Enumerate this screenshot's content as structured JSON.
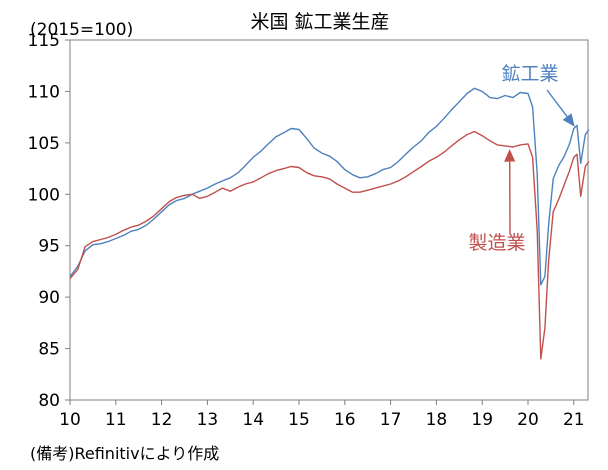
{
  "chart_data": {
    "type": "line",
    "title": "米国 鉱工業生産",
    "unit_label": "(2015=100)",
    "xlabel": "",
    "ylabel": "",
    "xlim": [
      2010,
      2021.33
    ],
    "ylim": [
      80,
      115
    ],
    "yticks": [
      80,
      85,
      90,
      95,
      100,
      105,
      110,
      115
    ],
    "xtick_labels": [
      "10",
      "11",
      "12",
      "13",
      "14",
      "15",
      "16",
      "17",
      "18",
      "19",
      "20",
      "21"
    ],
    "grid": false,
    "legend": "inline labels",
    "series": [
      {
        "name": "鉱工業",
        "color": "#4f81bd",
        "points": [
          [
            2010.0,
            92.0
          ],
          [
            2010.17,
            93.0
          ],
          [
            2010.33,
            94.5
          ],
          [
            2010.5,
            95.1
          ],
          [
            2010.67,
            95.2
          ],
          [
            2010.83,
            95.4
          ],
          [
            2011.0,
            95.7
          ],
          [
            2011.17,
            96.0
          ],
          [
            2011.33,
            96.4
          ],
          [
            2011.5,
            96.6
          ],
          [
            2011.67,
            97.0
          ],
          [
            2011.83,
            97.6
          ],
          [
            2012.0,
            98.3
          ],
          [
            2012.17,
            99.0
          ],
          [
            2012.33,
            99.4
          ],
          [
            2012.5,
            99.6
          ],
          [
            2012.67,
            100.0
          ],
          [
            2012.83,
            100.3
          ],
          [
            2013.0,
            100.6
          ],
          [
            2013.17,
            101.0
          ],
          [
            2013.33,
            101.3
          ],
          [
            2013.5,
            101.6
          ],
          [
            2013.67,
            102.1
          ],
          [
            2013.83,
            102.8
          ],
          [
            2014.0,
            103.6
          ],
          [
            2014.17,
            104.2
          ],
          [
            2014.33,
            104.9
          ],
          [
            2014.5,
            105.6
          ],
          [
            2014.67,
            106.0
          ],
          [
            2014.83,
            106.4
          ],
          [
            2015.0,
            106.3
          ],
          [
            2015.17,
            105.4
          ],
          [
            2015.33,
            104.5
          ],
          [
            2015.5,
            104.0
          ],
          [
            2015.67,
            103.7
          ],
          [
            2015.83,
            103.2
          ],
          [
            2016.0,
            102.4
          ],
          [
            2016.17,
            101.9
          ],
          [
            2016.33,
            101.6
          ],
          [
            2016.5,
            101.7
          ],
          [
            2016.67,
            102.0
          ],
          [
            2016.83,
            102.4
          ],
          [
            2017.0,
            102.6
          ],
          [
            2017.17,
            103.2
          ],
          [
            2017.33,
            103.9
          ],
          [
            2017.5,
            104.6
          ],
          [
            2017.67,
            105.2
          ],
          [
            2017.83,
            106.0
          ],
          [
            2018.0,
            106.6
          ],
          [
            2018.17,
            107.4
          ],
          [
            2018.33,
            108.2
          ],
          [
            2018.5,
            109.0
          ],
          [
            2018.67,
            109.8
          ],
          [
            2018.83,
            110.3
          ],
          [
            2019.0,
            110.0
          ],
          [
            2019.17,
            109.4
          ],
          [
            2019.33,
            109.3
          ],
          [
            2019.5,
            109.6
          ],
          [
            2019.67,
            109.4
          ],
          [
            2019.83,
            109.9
          ],
          [
            2020.0,
            109.8
          ],
          [
            2020.1,
            108.5
          ],
          [
            2020.2,
            102.0
          ],
          [
            2020.28,
            91.2
          ],
          [
            2020.37,
            92.0
          ],
          [
            2020.45,
            97.0
          ],
          [
            2020.55,
            101.5
          ],
          [
            2020.67,
            102.8
          ],
          [
            2020.78,
            103.6
          ],
          [
            2020.9,
            104.8
          ],
          [
            2021.0,
            106.4
          ],
          [
            2021.07,
            106.7
          ],
          [
            2021.15,
            103.0
          ],
          [
            2021.25,
            105.8
          ],
          [
            2021.33,
            106.3
          ]
        ]
      },
      {
        "name": "製造業",
        "color": "#c0504d",
        "points": [
          [
            2010.0,
            91.8
          ],
          [
            2010.17,
            92.7
          ],
          [
            2010.33,
            94.9
          ],
          [
            2010.5,
            95.4
          ],
          [
            2010.67,
            95.6
          ],
          [
            2010.83,
            95.8
          ],
          [
            2011.0,
            96.1
          ],
          [
            2011.17,
            96.5
          ],
          [
            2011.33,
            96.8
          ],
          [
            2011.5,
            97.0
          ],
          [
            2011.67,
            97.4
          ],
          [
            2011.83,
            97.9
          ],
          [
            2012.0,
            98.6
          ],
          [
            2012.17,
            99.3
          ],
          [
            2012.33,
            99.7
          ],
          [
            2012.5,
            99.9
          ],
          [
            2012.67,
            100.0
          ],
          [
            2012.83,
            99.6
          ],
          [
            2013.0,
            99.8
          ],
          [
            2013.17,
            100.2
          ],
          [
            2013.33,
            100.6
          ],
          [
            2013.5,
            100.3
          ],
          [
            2013.67,
            100.7
          ],
          [
            2013.83,
            101.0
          ],
          [
            2014.0,
            101.2
          ],
          [
            2014.17,
            101.6
          ],
          [
            2014.33,
            102.0
          ],
          [
            2014.5,
            102.3
          ],
          [
            2014.67,
            102.5
          ],
          [
            2014.83,
            102.7
          ],
          [
            2015.0,
            102.6
          ],
          [
            2015.17,
            102.1
          ],
          [
            2015.33,
            101.8
          ],
          [
            2015.5,
            101.7
          ],
          [
            2015.67,
            101.5
          ],
          [
            2015.83,
            101.0
          ],
          [
            2016.0,
            100.6
          ],
          [
            2016.17,
            100.2
          ],
          [
            2016.33,
            100.2
          ],
          [
            2016.5,
            100.4
          ],
          [
            2016.67,
            100.6
          ],
          [
            2016.83,
            100.8
          ],
          [
            2017.0,
            101.0
          ],
          [
            2017.17,
            101.3
          ],
          [
            2017.33,
            101.7
          ],
          [
            2017.5,
            102.2
          ],
          [
            2017.67,
            102.7
          ],
          [
            2017.83,
            103.2
          ],
          [
            2018.0,
            103.6
          ],
          [
            2018.17,
            104.1
          ],
          [
            2018.33,
            104.7
          ],
          [
            2018.5,
            105.3
          ],
          [
            2018.67,
            105.8
          ],
          [
            2018.83,
            106.1
          ],
          [
            2019.0,
            105.7
          ],
          [
            2019.17,
            105.2
          ],
          [
            2019.33,
            104.8
          ],
          [
            2019.5,
            104.7
          ],
          [
            2019.67,
            104.6
          ],
          [
            2019.83,
            104.8
          ],
          [
            2020.0,
            104.9
          ],
          [
            2020.1,
            103.6
          ],
          [
            2020.2,
            96.5
          ],
          [
            2020.28,
            84.0
          ],
          [
            2020.37,
            87.0
          ],
          [
            2020.45,
            93.5
          ],
          [
            2020.55,
            98.3
          ],
          [
            2020.67,
            99.5
          ],
          [
            2020.78,
            100.8
          ],
          [
            2020.9,
            102.2
          ],
          [
            2021.0,
            103.6
          ],
          [
            2021.07,
            103.9
          ],
          [
            2021.15,
            99.8
          ],
          [
            2021.25,
            102.7
          ],
          [
            2021.33,
            103.2
          ]
        ]
      }
    ],
    "annotations": [
      {
        "text": "鉱工業",
        "series": 0,
        "arrow_to_x": 2021.0
      },
      {
        "text": "製造業",
        "series": 1,
        "arrow_to_x": 2019.6
      }
    ]
  },
  "footnote": "(備考)Refinitivにより作成"
}
